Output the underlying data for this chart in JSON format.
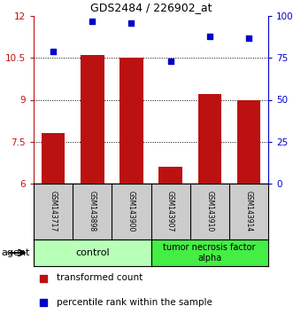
{
  "title": "GDS2484 / 226902_at",
  "samples": [
    "GSM143717",
    "GSM143898",
    "GSM143900",
    "GSM143907",
    "GSM143910",
    "GSM143914"
  ],
  "bar_values": [
    7.8,
    10.6,
    10.5,
    6.6,
    9.2,
    9.0
  ],
  "dot_values": [
    79,
    97,
    96,
    73,
    88,
    87
  ],
  "bar_color": "#bb1111",
  "dot_color": "#0000cc",
  "ylim_left": [
    6,
    12
  ],
  "ylim_right": [
    0,
    100
  ],
  "yticks_left": [
    6,
    7.5,
    9,
    10.5,
    12
  ],
  "yticks_right": [
    0,
    25,
    50,
    75,
    100
  ],
  "ytick_labels_right": [
    "0",
    "25",
    "50",
    "75",
    "100%"
  ],
  "groups": [
    {
      "label": "control",
      "indices": [
        0,
        1,
        2
      ],
      "color": "#b8ffb8"
    },
    {
      "label": "tumor necrosis factor\nalpha",
      "indices": [
        3,
        4,
        5
      ],
      "color": "#44ee44"
    }
  ],
  "legend_bar_label": "transformed count",
  "legend_dot_label": "percentile rank within the sample",
  "agent_label": "agent",
  "background_plot": "#ffffff",
  "background_sample": "#cccccc",
  "title_fontsize": 9.5
}
